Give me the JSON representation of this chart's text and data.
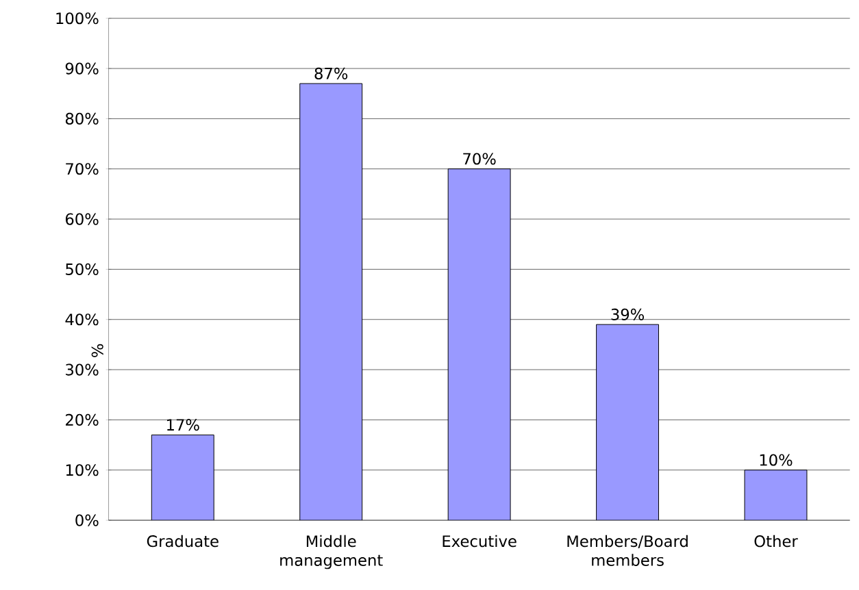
{
  "chart_data": {
    "type": "bar",
    "ylabel": "%",
    "categories": [
      "Graduate",
      "Middle management",
      "Executive",
      "Members/Board members",
      "Other"
    ],
    "values": [
      17,
      87,
      70,
      39,
      10
    ],
    "value_labels": [
      "17%",
      "87%",
      "70%",
      "39%",
      "10%"
    ],
    "color": "#9999ff",
    "ylim": [
      0,
      100
    ],
    "yticks": [
      {
        "value": 0,
        "label": "0%"
      },
      {
        "value": 10,
        "label": "10%"
      },
      {
        "value": 20,
        "label": "20%"
      },
      {
        "value": 30,
        "label": "30%"
      },
      {
        "value": 40,
        "label": "40%"
      },
      {
        "value": 50,
        "label": "50%"
      },
      {
        "value": 60,
        "label": "60%"
      },
      {
        "value": 70,
        "label": "70%"
      },
      {
        "value": 80,
        "label": "80%"
      },
      {
        "value": 90,
        "label": "90%"
      },
      {
        "value": 100,
        "label": "100%"
      }
    ],
    "grid": "y"
  }
}
